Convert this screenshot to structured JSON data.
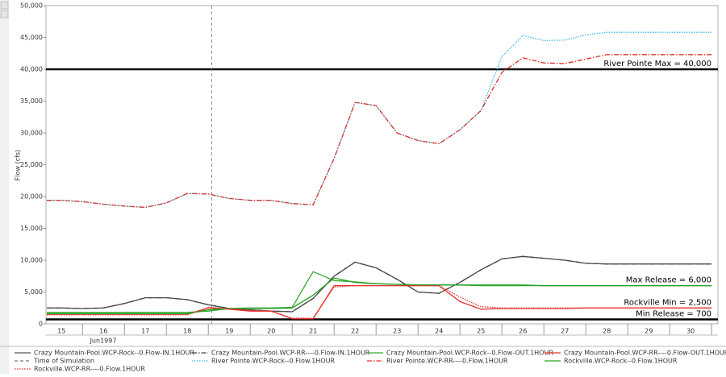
{
  "chart_data": {
    "type": "line",
    "y_axis_label": "Flow (cfs)",
    "x_sub_label": "Jun1997",
    "xlim": [
      15.13,
      31.15
    ],
    "xticks": [
      16,
      17,
      18,
      19,
      20,
      21,
      22,
      23,
      24,
      25,
      26,
      27,
      28,
      29,
      30,
      31
    ],
    "day_labels": [
      "15",
      "16",
      "17",
      "18",
      "19",
      "20",
      "21",
      "22",
      "23",
      "24",
      "25",
      "26",
      "27",
      "28",
      "29",
      "30"
    ],
    "ylim": [
      0,
      50000
    ],
    "yticks": [
      0,
      {
        "value": 5000,
        "label": "5,000"
      },
      {
        "value": 10000,
        "label": "10,000"
      },
      {
        "value": 15000,
        "label": "15,000"
      },
      {
        "value": 20000,
        "label": "20,000"
      },
      {
        "value": 25000,
        "label": "25,000"
      },
      {
        "value": 30000,
        "label": "30,000"
      },
      {
        "value": 35000,
        "label": "35,000"
      },
      {
        "value": 40000,
        "label": "40,000"
      },
      {
        "value": 45000,
        "label": "45,000"
      },
      {
        "value": 50000,
        "label": "50,000"
      }
    ],
    "x": [
      15.15,
      15.5,
      16,
      16.5,
      17,
      17.5,
      18,
      18.5,
      19,
      19.5,
      20,
      20.5,
      21,
      21.5,
      22,
      22.5,
      23,
      23.5,
      24,
      24.5,
      25,
      25.5,
      26,
      26.5,
      27,
      27.5,
      28,
      28.5,
      29,
      29.5,
      30,
      30.5,
      31
    ],
    "series": [
      {
        "name": "Crazy Mountain-Pool.WCP-Rock--0.Flow-IN.1HOUR",
        "color": "#555555",
        "dash": "solid",
        "values": [
          2500,
          2500,
          2400,
          2500,
          3200,
          4100,
          4100,
          3800,
          3000,
          2400,
          2200,
          2000,
          1900,
          4000,
          7500,
          9700,
          8800,
          7000,
          5000,
          4800,
          6500,
          8500,
          10200,
          10600,
          10300,
          10000,
          9500,
          9400,
          9400,
          9400,
          9400,
          9400,
          9400
        ]
      },
      {
        "name": "Crazy Mountain-Pool.WCP-RR----0.Flow-IN.1HOUR",
        "color": "#444444",
        "dash": "dash-dot",
        "values": [
          2500,
          2500,
          2400,
          2500,
          3200,
          4100,
          4100,
          3800,
          3000,
          2400,
          2200,
          2000,
          1900,
          4000,
          7500,
          9700,
          8800,
          7000,
          5000,
          4800,
          6500,
          8500,
          10200,
          10600,
          10300,
          10000,
          9500,
          9400,
          9400,
          9400,
          9400,
          9400,
          9400
        ]
      },
      {
        "name": "Crazy Mountain-Pool.WCP-Rock--0.Flow-OUT.1HOUR",
        "color": "#33aa33",
        "dash": "solid",
        "values": [
          1800,
          1800,
          1800,
          1800,
          1800,
          1800,
          1800,
          1800,
          2000,
          2400,
          2500,
          2500,
          2600,
          8200,
          6800,
          6600,
          6300,
          6200,
          6100,
          6100,
          6100,
          6000,
          6000,
          6000,
          6000,
          6000,
          6000,
          6000,
          6000,
          6000,
          6000,
          6000,
          6000
        ]
      },
      {
        "name": "Crazy Mountain-Pool.WCP-RR----0.Flow-OUT.1HOUR",
        "color": "#e8312a",
        "dash": "solid",
        "values": [
          1500,
          1500,
          1500,
          1500,
          1500,
          1500,
          1500,
          1500,
          2500,
          2300,
          2000,
          2000,
          800,
          800,
          6000,
          6000,
          6000,
          6000,
          6000,
          6000,
          3500,
          2300,
          2400,
          2400,
          2400,
          2400,
          2500,
          2500,
          2500,
          2500,
          2500,
          2500,
          2500
        ]
      },
      {
        "name": "Time of Simulation",
        "color": "#777777",
        "dash": "dashed",
        "x_value": 19.08
      },
      {
        "name": "River Pointe.WCP-Rock--0.Flow.1HOUR",
        "color": "#3fb7e8",
        "dash": "dotted",
        "values": [
          19400,
          19400,
          19200,
          18800,
          18500,
          18300,
          19000,
          20500,
          20400,
          19700,
          19400,
          19400,
          18900,
          18700,
          26000,
          34800,
          34300,
          30000,
          28800,
          28300,
          30500,
          33500,
          42000,
          45300,
          44500,
          44600,
          45400,
          45800,
          45800,
          45800,
          45800,
          45800,
          45800
        ]
      },
      {
        "name": "River Pointe.WCP-RR----0.Flow.1HOUR",
        "color": "#e0312a",
        "dash": "dash-dot",
        "values": [
          19400,
          19400,
          19200,
          18800,
          18500,
          18300,
          19000,
          20500,
          20400,
          19700,
          19400,
          19400,
          18900,
          18700,
          26000,
          34800,
          34300,
          30000,
          28800,
          28300,
          30500,
          33500,
          39500,
          41800,
          41000,
          40900,
          41600,
          42300,
          42300,
          42300,
          42300,
          42300,
          42300
        ]
      },
      {
        "name": "Rockville.WCP-Rock--0.Flow.1HOUR",
        "color": "#22a022",
        "dash": "solid",
        "values": [
          1600,
          1600,
          1600,
          1600,
          1600,
          1600,
          1600,
          1600,
          2200,
          2400,
          2400,
          2400,
          2500,
          4500,
          7200,
          6500,
          6300,
          6200,
          6100,
          6100,
          6100,
          6100,
          6100,
          6100,
          6000,
          6000,
          6000,
          6000,
          6000,
          6000,
          6000,
          6000,
          6000
        ]
      },
      {
        "name": "Rockville.WCP-RR----0.Flow.1HOUR",
        "color": "#e8312a",
        "dash": "dotted",
        "values": [
          1400,
          1400,
          1400,
          1400,
          1400,
          1400,
          1400,
          1400,
          2600,
          2400,
          2100,
          2000,
          900,
          900,
          5800,
          6000,
          6000,
          6000,
          6000,
          6000,
          4200,
          2700,
          2500,
          2500,
          2500,
          2500,
          2500,
          2500,
          2500,
          2500,
          2500,
          2500,
          2500
        ]
      }
    ],
    "reference_lines": [
      {
        "label": "River Pointe Max = 40,000",
        "value": 40000,
        "line": true
      },
      {
        "label": "Max Release = 6,000",
        "value": 6000,
        "line": false
      },
      {
        "label": "Rockville Min = 2,500",
        "value": 2500,
        "line": false
      },
      {
        "label": "Min Release = 700",
        "value": 700,
        "line": true
      }
    ]
  }
}
